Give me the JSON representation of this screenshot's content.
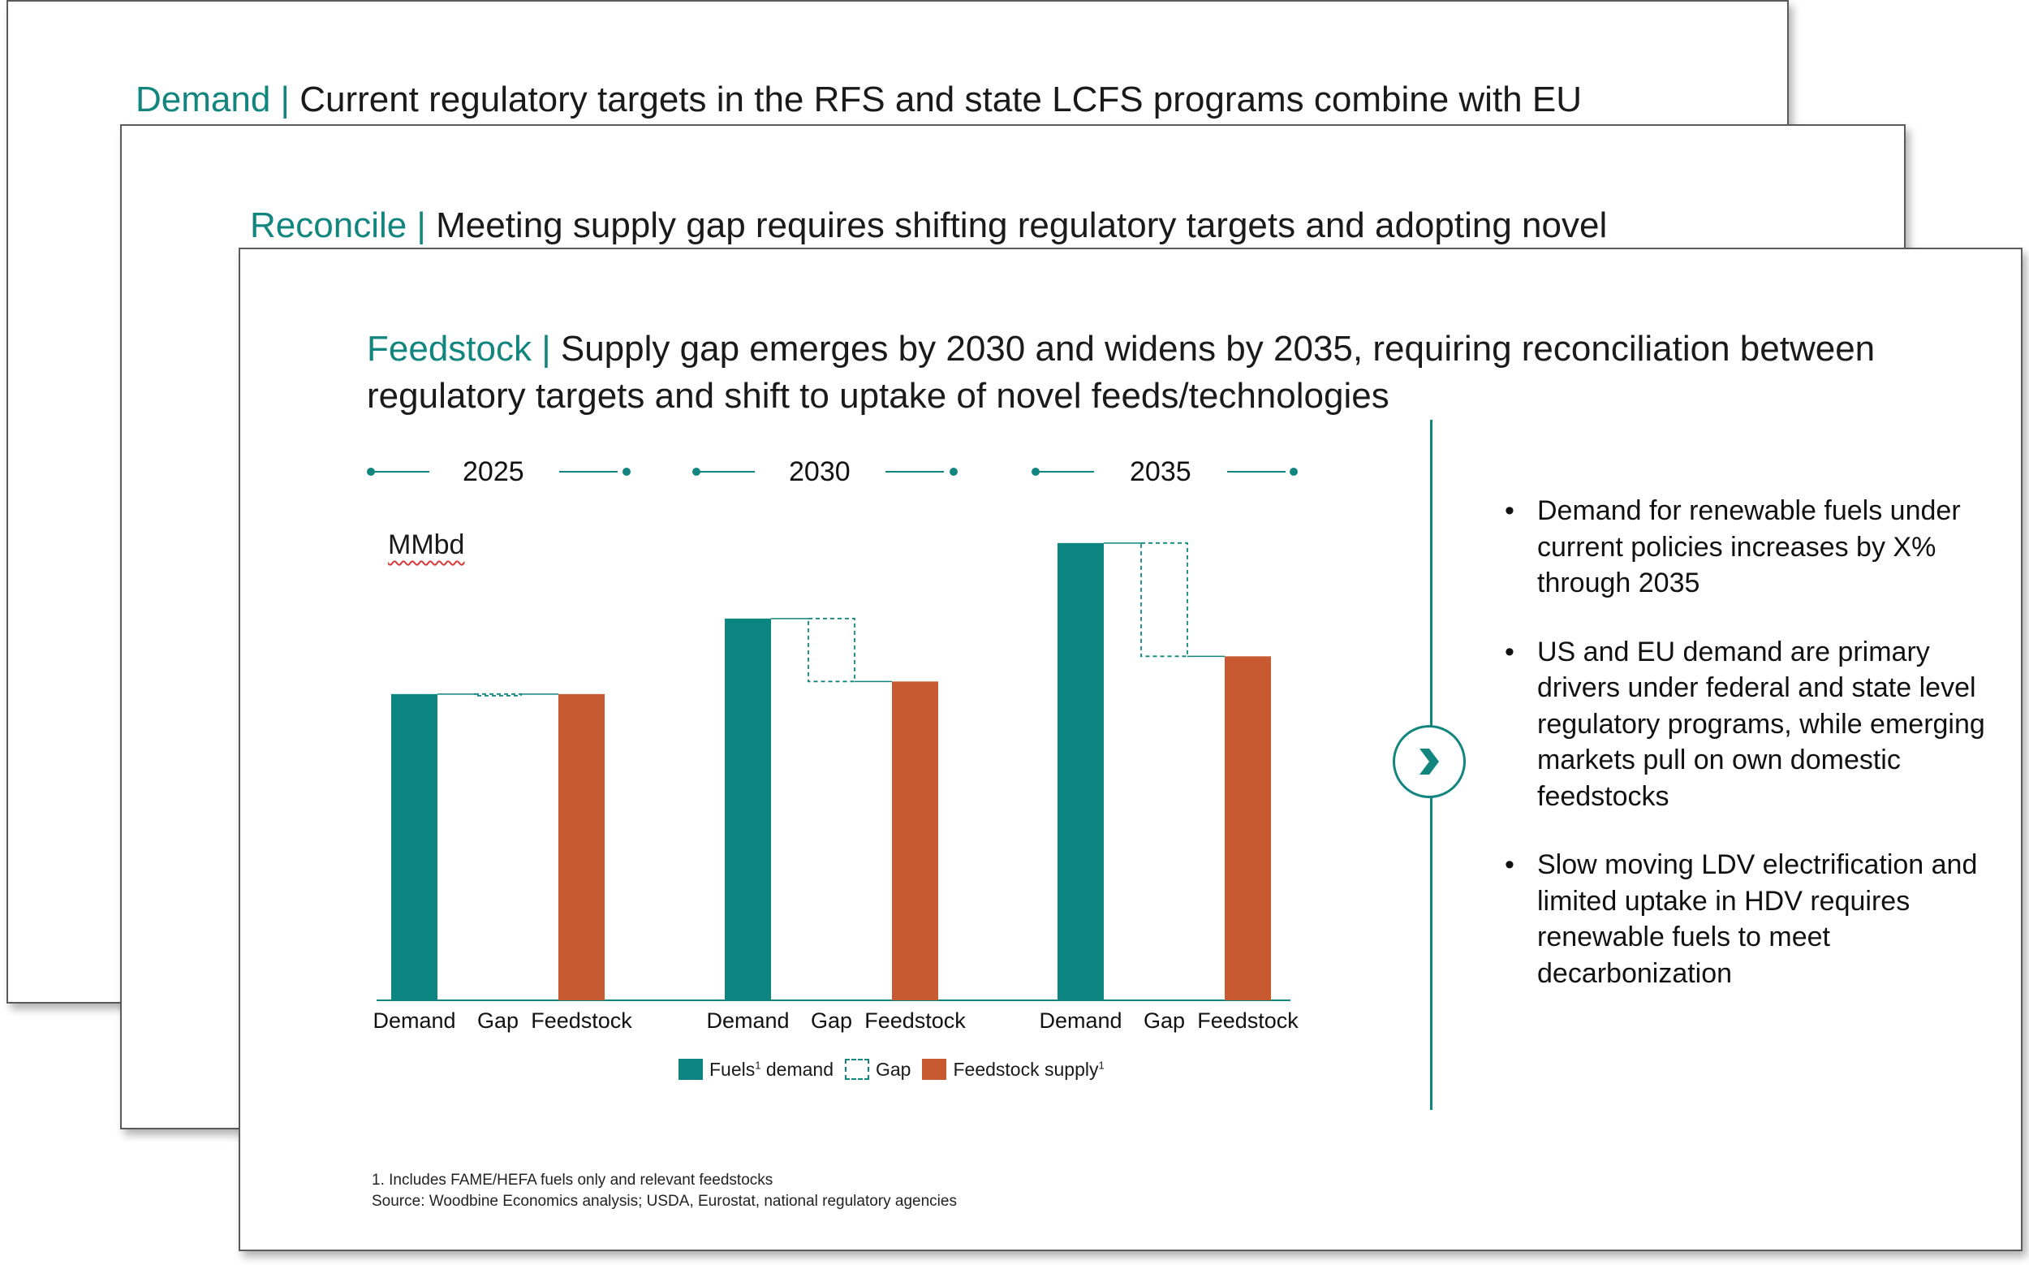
{
  "slides": {
    "back": {
      "title_prefix": "Demand |",
      "title_rest": " Current regulatory targets in the RFS and state LCFS programs combine with EU"
    },
    "mid": {
      "title_prefix": "Reconcile |",
      "title_rest": " Meeting supply gap requires shifting regulatory targets and adopting novel"
    },
    "front": {
      "title_prefix": "Feedstock |",
      "title_rest": " Supply gap emerges by 2030 and widens by 2035, requiring reconciliation between regulatory targets and shift to uptake of novel feeds/technologies",
      "years": [
        "2025",
        "2030",
        "2035"
      ],
      "unit": "MMbd",
      "legend": {
        "fuels": "Fuels",
        "fuels_sup": "1",
        "fuels_suffix": " demand",
        "gap": "Gap",
        "feedstock": "Feedstock supply",
        "feedstock_sup": "1"
      },
      "bullets": [
        "Demand for renewable fuels under current policies increases by X% through 2035",
        "US and EU demand are primary drivers under federal and state level regulatory programs, while emerging markets pull on own domestic feedstocks",
        "Slow moving LDV electrification and limited uptake in HDV requires renewable fuels to meet decarbonization"
      ],
      "footnote1": "1. Includes FAME/HEFA fuels only and relevant feedstocks",
      "source": "Source: Woodbine Economics analysis; USDA, Eurostat, national regulatory agencies"
    }
  },
  "colors": {
    "teal": "#0c8480",
    "accent": "#12857f",
    "orange": "#c85a32"
  },
  "icons": {
    "arrow": "chevron-right-icon"
  },
  "chart_data": {
    "type": "bar",
    "subtype": "waterfall",
    "unit": "MMbd",
    "groups": [
      "2025",
      "2030",
      "2035"
    ],
    "categories": [
      "Demand",
      "Gap",
      "Feedstock"
    ],
    "series": [
      {
        "name": "Fuels demand",
        "values": [
          3.65,
          4.55,
          5.45
        ]
      },
      {
        "name": "Gap",
        "values": [
          0.0,
          0.75,
          1.35
        ]
      },
      {
        "name": "Feedstock supply",
        "values": [
          3.65,
          3.8,
          4.1
        ]
      }
    ],
    "ylim": [
      0,
      6
    ],
    "grid": false,
    "legend_position": "bottom"
  }
}
